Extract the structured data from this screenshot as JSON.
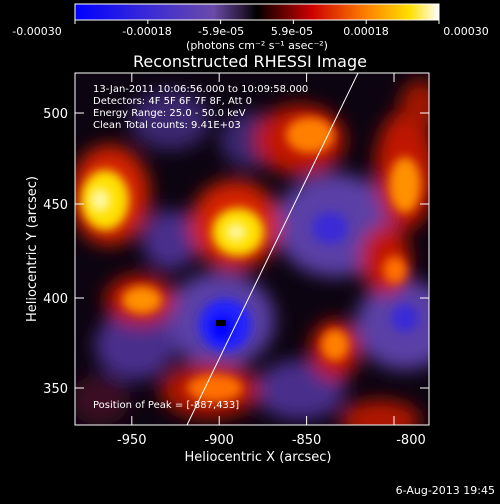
{
  "colorbar": {
    "tick_labels": [
      "-0.00030",
      "-0.00018",
      "-5.9e-05",
      "5.9e-05",
      "0.00018",
      "0.00030"
    ],
    "unit_label": "(photons cm⁻² s⁻¹ asec⁻²)",
    "range": [
      -0.0003,
      0.0003
    ]
  },
  "image": {
    "title": "Reconstructed RHESSI Image",
    "info_lines": [
      "13-Jan-2011 10:06:56.000 to 10:09:58.000",
      "Detectors: 4F 5F 6F 7F 8F, Att 0",
      "Energy Range: 25.0 - 50.0 keV",
      "Clean     Total counts: 9.41E+03"
    ],
    "peak_label": "Position of Peak = [-887,433]",
    "xlabel": "Heliocentric X (arcsec)",
    "ylabel": "Heliocentric Y (arcsec)",
    "xticks": [
      "-950",
      "-900",
      "-850",
      "-800"
    ],
    "yticks": [
      "350",
      "400",
      "450",
      "500"
    ],
    "xlim": [
      -978,
      -788
    ],
    "ylim": [
      330,
      520
    ]
  },
  "footer": {
    "timestamp": "6-Aug-2013 19:45"
  }
}
